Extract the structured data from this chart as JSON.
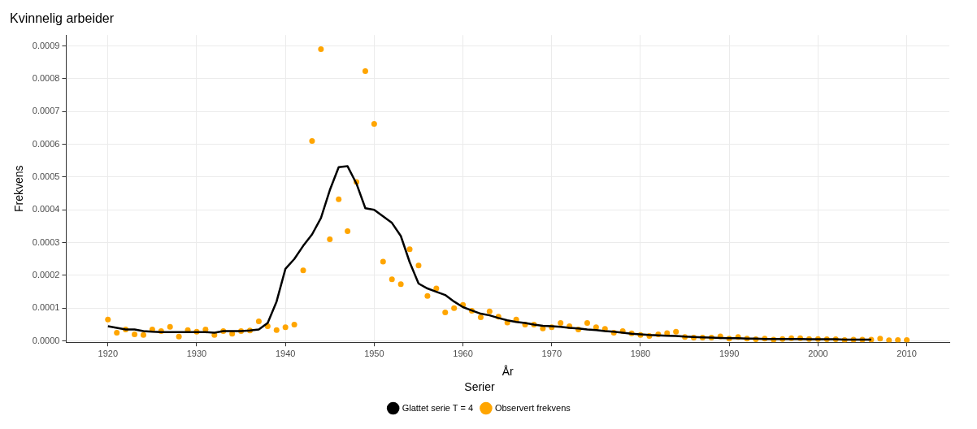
{
  "chart_data": {
    "type": "line",
    "title": "Kvinnelig arbeider",
    "xlabel": "År",
    "ylabel": "Frekvens",
    "legend_title": "Serier",
    "legend": "bottom",
    "grid": true,
    "xlim": [
      1915.3,
      2014.8
    ],
    "xticks": [
      1920,
      1930,
      1940,
      1950,
      1960,
      1970,
      1980,
      1990,
      2000,
      2010
    ],
    "ylim": [
      -4e-06,
      0.000933
    ],
    "yticks": [
      {
        "value": 0,
        "label": "0.0000"
      },
      {
        "value": 0.0001,
        "label": "0.0001"
      },
      {
        "value": 0.0002,
        "label": "0.0002"
      },
      {
        "value": 0.0003,
        "label": "0.0003"
      },
      {
        "value": 0.0004,
        "label": "0.0004"
      },
      {
        "value": 0.0005,
        "label": "0.0005"
      },
      {
        "value": 0.0006,
        "label": "0.0006"
      },
      {
        "value": 0.0007,
        "label": "0.0007"
      },
      {
        "value": 0.0008,
        "label": "0.0008"
      },
      {
        "value": 0.0009,
        "label": "0.0009"
      }
    ],
    "series": [
      {
        "name": "Glattet serie T = 4",
        "type": "line",
        "color": "#000000",
        "marker": "none",
        "line_style": "solid",
        "x": [
          1920,
          1921,
          1922,
          1923,
          1924,
          1925,
          1926,
          1927,
          1928,
          1929,
          1930,
          1931,
          1932,
          1933,
          1934,
          1935,
          1936,
          1937,
          1938,
          1939,
          1940,
          1941,
          1942,
          1943,
          1944,
          1945,
          1946,
          1947,
          1948,
          1949,
          1950,
          1951,
          1952,
          1953,
          1954,
          1955,
          1956,
          1957,
          1958,
          1959,
          1960,
          1961,
          1962,
          1963,
          1964,
          1965,
          1966,
          1967,
          1968,
          1969,
          1970,
          1971,
          1972,
          1973,
          1974,
          1975,
          1976,
          1977,
          1978,
          1979,
          1980,
          1981,
          1982,
          1983,
          1984,
          1985,
          1986,
          1987,
          1988,
          1989,
          1990,
          1991,
          1992,
          1993,
          1994,
          1995,
          1996,
          1997,
          1998,
          1999,
          2000,
          2001,
          2002,
          2003,
          2004,
          2005,
          2006
        ],
        "values": [
          4.5e-05,
          4e-05,
          3.5e-05,
          3.5e-05,
          3e-05,
          2.8e-05,
          2.7e-05,
          2.7e-05,
          2.7e-05,
          2.7e-05,
          2.7e-05,
          2.7e-05,
          2.5e-05,
          3e-05,
          3e-05,
          3e-05,
          3.2e-05,
          3.5e-05,
          5.5e-05,
          0.00012,
          0.00022,
          0.00025,
          0.00029,
          0.000325,
          0.000375,
          0.00046,
          0.00053,
          0.000533,
          0.00048,
          0.000405,
          0.0004,
          0.00038,
          0.00036,
          0.00032,
          0.00024,
          0.000175,
          0.00016,
          0.00015,
          0.00014,
          0.00012,
          0.000103,
          9.3e-05,
          8.3e-05,
          7.8e-05,
          7e-05,
          6.3e-05,
          5.8e-05,
          5.5e-05,
          5e-05,
          4.6e-05,
          4.5e-05,
          4.3e-05,
          4e-05,
          3.8e-05,
          3.5e-05,
          3.3e-05,
          3e-05,
          2.8e-05,
          2.5e-05,
          2.2e-05,
          2e-05,
          1.8e-05,
          1.7e-05,
          1.6e-05,
          1.5e-05,
          1.3e-05,
          1.2e-05,
          1.1e-05,
          1e-05,
          9e-06,
          8e-06,
          8e-06,
          7e-06,
          7e-06,
          6e-06,
          6e-06,
          6e-06,
          6e-06,
          6e-06,
          5e-06,
          5e-06,
          5e-06,
          5e-06,
          4e-06,
          4e-06,
          4e-06,
          4e-06
        ]
      },
      {
        "name": "Observert frekvens",
        "type": "scatter",
        "color": "#ffa500",
        "marker": "circle",
        "x": [
          1920,
          1921,
          1922,
          1923,
          1924,
          1925,
          1926,
          1927,
          1928,
          1929,
          1930,
          1931,
          1932,
          1933,
          1934,
          1935,
          1936,
          1937,
          1938,
          1939,
          1940,
          1941,
          1942,
          1943,
          1944,
          1945,
          1946,
          1947,
          1948,
          1949,
          1950,
          1951,
          1952,
          1953,
          1954,
          1955,
          1956,
          1957,
          1958,
          1959,
          1960,
          1961,
          1962,
          1963,
          1964,
          1965,
          1966,
          1967,
          1968,
          1969,
          1970,
          1971,
          1972,
          1973,
          1974,
          1975,
          1976,
          1977,
          1978,
          1979,
          1980,
          1981,
          1982,
          1983,
          1984,
          1985,
          1986,
          1987,
          1988,
          1989,
          1990,
          1991,
          1992,
          1993,
          1994,
          1995,
          1996,
          1997,
          1998,
          1999,
          2000,
          2001,
          2002,
          2003,
          2004,
          2005,
          2006,
          2007,
          2008,
          2009,
          2010
        ],
        "values": [
          6.5e-05,
          2.5e-05,
          3.5e-05,
          2e-05,
          1.8e-05,
          3.5e-05,
          3e-05,
          4.3e-05,
          1.3e-05,
          3.3e-05,
          2.8e-05,
          3.5e-05,
          1.8e-05,
          3e-05,
          2.2e-05,
          3e-05,
          3.2e-05,
          6e-05,
          4.5e-05,
          3.3e-05,
          4.2e-05,
          5e-05,
          0.000215,
          0.00061,
          0.00089,
          0.00031,
          0.000432,
          0.000335,
          0.000485,
          0.000823,
          0.000662,
          0.000242,
          0.000188,
          0.000173,
          0.00028,
          0.00023,
          0.000137,
          0.00016,
          8.7e-05,
          0.0001,
          0.00011,
          9.2e-05,
          7.2e-05,
          9e-05,
          7.4e-05,
          5.6e-05,
          6.5e-05,
          5e-05,
          5e-05,
          3.8e-05,
          4.2e-05,
          5.5e-05,
          4.5e-05,
          3.5e-05,
          5.5e-05,
          4.2e-05,
          3.7e-05,
          2.5e-05,
          3e-05,
          2.3e-05,
          1.8e-05,
          1.5e-05,
          2e-05,
          2.4e-05,
          2.8e-05,
          1.2e-05,
          1e-05,
          1e-05,
          1e-05,
          1.4e-05,
          7e-06,
          1.2e-05,
          7e-06,
          5e-06,
          7e-06,
          4e-06,
          6e-06,
          8e-06,
          8e-06,
          6e-06,
          6e-06,
          5e-06,
          5e-06,
          3e-06,
          4e-06,
          4e-06,
          4e-06,
          7e-06,
          2e-06,
          3e-06,
          3e-06
        ]
      }
    ]
  }
}
